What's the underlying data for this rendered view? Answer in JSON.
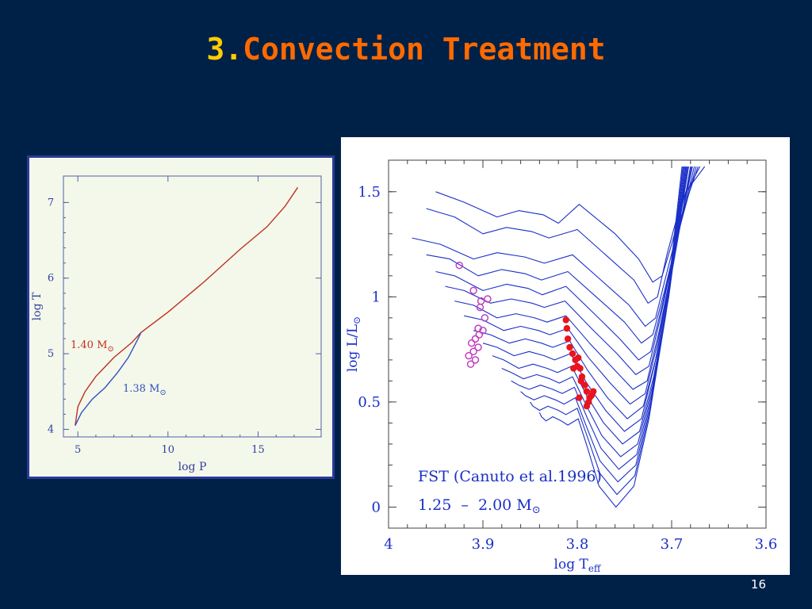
{
  "slide": {
    "title_number": "3.",
    "title_text": "Convection Treatment",
    "page_number": "16"
  },
  "colors": {
    "background": "#002147",
    "title_number": "#ffcc00",
    "title_text": "#ff6a00",
    "series_red": "#c03020",
    "series_blue": "#3050c0",
    "track_blue": "#1a2fc8",
    "obs_red": "#e8141e",
    "obs_magenta": "#c040c0"
  },
  "chart_data": [
    {
      "type": "line",
      "xlabel": "log P",
      "ylabel": "log T",
      "xlim": [
        4.2,
        18.5
      ],
      "ylim": [
        3.9,
        7.35
      ],
      "xticks": [
        5,
        10,
        15
      ],
      "yticks": [
        4,
        5,
        6,
        7
      ],
      "series": [
        {
          "name": "1.40 M⊙",
          "label_main": "1.40 M",
          "label_sub": "⊙",
          "x": [
            4.85,
            5.0,
            5.4,
            6.0,
            7.0,
            8.0,
            8.5,
            10,
            12,
            14,
            15.5,
            16.5,
            17.2
          ],
          "y": [
            4.05,
            4.3,
            4.5,
            4.7,
            4.95,
            5.15,
            5.28,
            5.55,
            5.95,
            6.38,
            6.68,
            6.95,
            7.2
          ]
        },
        {
          "name": "1.38 M⊙",
          "label_main": "1.38 M",
          "label_sub": "⊙",
          "x": [
            4.85,
            5.2,
            5.8,
            6.5,
            7.2,
            7.8,
            8.3,
            8.5
          ],
          "y": [
            4.05,
            4.22,
            4.4,
            4.55,
            4.75,
            4.95,
            5.18,
            5.28
          ]
        }
      ]
    },
    {
      "type": "line",
      "xlabel": "log T",
      "xlabel_sub": "eff",
      "ylabel": "log L/L",
      "ylabel_sub": "⊙",
      "xlim": [
        4.0,
        3.6
      ],
      "ylim": [
        -0.1,
        1.65
      ],
      "xticks": [
        "4",
        "3.9",
        "3.8",
        "3.7",
        "3.6"
      ],
      "yticks": [
        "0",
        "0.5",
        "1",
        "1.5"
      ],
      "annotations": [
        "FST (Canuto et al.1996)",
        "1.25  –  2.00 M"
      ],
      "annotation_sub": "⊙",
      "series": [
        {
          "name": "",
          "x": [
            3.95,
            3.92,
            3.885,
            3.862,
            3.836,
            3.82,
            3.798,
            3.76,
            3.735,
            3.72,
            3.71,
            3.7,
            3.685,
            3.665
          ],
          "y": [
            1.5,
            1.45,
            1.38,
            1.41,
            1.39,
            1.35,
            1.44,
            1.3,
            1.18,
            1.07,
            1.1,
            1.25,
            1.5,
            1.62
          ]
        },
        {
          "name": "",
          "x": [
            3.96,
            3.93,
            3.9,
            3.875,
            3.848,
            3.83,
            3.8,
            3.77,
            3.74,
            3.725,
            3.715,
            3.705,
            3.69,
            3.67
          ],
          "y": [
            1.42,
            1.38,
            1.3,
            1.33,
            1.31,
            1.28,
            1.32,
            1.2,
            1.08,
            0.97,
            1.0,
            1.2,
            1.45,
            1.62
          ]
        },
        {
          "name": "",
          "x": [
            3.975,
            3.945,
            3.91,
            3.885,
            3.856,
            3.835,
            3.805,
            3.775,
            3.745,
            3.728,
            3.717,
            3.706,
            3.69,
            3.672
          ],
          "y": [
            1.28,
            1.25,
            1.18,
            1.21,
            1.19,
            1.16,
            1.2,
            1.08,
            0.96,
            0.86,
            0.9,
            1.1,
            1.38,
            1.62
          ]
        },
        {
          "name": "",
          "x": [
            3.96,
            3.935,
            3.905,
            3.88,
            3.855,
            3.838,
            3.81,
            3.78,
            3.75,
            3.732,
            3.72,
            3.708,
            3.692,
            3.674
          ],
          "y": [
            1.2,
            1.18,
            1.1,
            1.13,
            1.11,
            1.08,
            1.12,
            1.0,
            0.88,
            0.78,
            0.82,
            1.02,
            1.32,
            1.62
          ]
        },
        {
          "name": "",
          "x": [
            3.95,
            3.93,
            3.9,
            3.875,
            3.852,
            3.837,
            3.812,
            3.782,
            3.755,
            3.735,
            3.722,
            3.71,
            3.694,
            3.676
          ],
          "y": [
            1.12,
            1.1,
            1.03,
            1.06,
            1.04,
            1.01,
            1.05,
            0.92,
            0.8,
            0.7,
            0.74,
            0.96,
            1.28,
            1.62
          ]
        },
        {
          "name": "",
          "x": [
            3.94,
            3.92,
            3.892,
            3.87,
            3.848,
            3.835,
            3.813,
            3.785,
            3.758,
            3.738,
            3.724,
            3.712,
            3.696,
            3.678
          ],
          "y": [
            1.05,
            1.03,
            0.97,
            0.99,
            0.97,
            0.95,
            0.98,
            0.85,
            0.73,
            0.63,
            0.67,
            0.9,
            1.24,
            1.62
          ]
        },
        {
          "name": "",
          "x": [
            3.93,
            3.91,
            3.885,
            3.865,
            3.845,
            3.832,
            3.812,
            3.787,
            3.762,
            3.741,
            3.726,
            3.713,
            3.697,
            3.679
          ],
          "y": [
            0.98,
            0.96,
            0.9,
            0.92,
            0.9,
            0.88,
            0.91,
            0.78,
            0.66,
            0.56,
            0.6,
            0.84,
            1.2,
            1.62
          ]
        },
        {
          "name": "",
          "x": [
            3.92,
            3.9,
            3.878,
            3.86,
            3.841,
            3.829,
            3.81,
            3.788,
            3.765,
            3.744,
            3.728,
            3.715,
            3.698,
            3.68
          ],
          "y": [
            0.91,
            0.89,
            0.84,
            0.86,
            0.84,
            0.82,
            0.85,
            0.71,
            0.59,
            0.49,
            0.54,
            0.78,
            1.16,
            1.62
          ]
        },
        {
          "name": "",
          "x": [
            3.91,
            3.892,
            3.872,
            3.855,
            3.838,
            3.826,
            3.808,
            3.789,
            3.768,
            3.747,
            3.73,
            3.716,
            3.7,
            3.682
          ],
          "y": [
            0.84,
            0.82,
            0.78,
            0.8,
            0.78,
            0.76,
            0.79,
            0.65,
            0.52,
            0.42,
            0.48,
            0.72,
            1.12,
            1.62
          ]
        },
        {
          "name": "",
          "x": [
            3.9,
            3.885,
            3.867,
            3.851,
            3.835,
            3.824,
            3.807,
            3.79,
            3.77,
            3.75,
            3.732,
            3.718,
            3.701,
            3.683
          ],
          "y": [
            0.78,
            0.76,
            0.72,
            0.74,
            0.72,
            0.7,
            0.73,
            0.59,
            0.46,
            0.36,
            0.42,
            0.68,
            1.08,
            1.62
          ]
        },
        {
          "name": "",
          "x": [
            3.89,
            3.878,
            3.862,
            3.847,
            3.832,
            3.821,
            3.806,
            3.79,
            3.772,
            3.752,
            3.734,
            3.719,
            3.702,
            3.684
          ],
          "y": [
            0.72,
            0.7,
            0.66,
            0.68,
            0.66,
            0.64,
            0.67,
            0.53,
            0.4,
            0.3,
            0.36,
            0.62,
            1.04,
            1.62
          ]
        },
        {
          "name": "",
          "x": [
            3.88,
            3.87,
            3.857,
            3.843,
            3.829,
            3.819,
            3.805,
            3.79,
            3.774,
            3.754,
            3.736,
            3.72,
            3.703,
            3.685
          ],
          "y": [
            0.66,
            0.64,
            0.61,
            0.63,
            0.61,
            0.59,
            0.62,
            0.48,
            0.34,
            0.24,
            0.3,
            0.58,
            1.0,
            1.62
          ]
        },
        {
          "name": "",
          "x": [
            3.87,
            3.862,
            3.851,
            3.839,
            3.826,
            3.816,
            3.803,
            3.79,
            3.775,
            3.756,
            3.737,
            3.721,
            3.704,
            3.686
          ],
          "y": [
            0.6,
            0.58,
            0.56,
            0.58,
            0.56,
            0.54,
            0.57,
            0.43,
            0.28,
            0.18,
            0.25,
            0.54,
            0.98,
            1.62
          ]
        },
        {
          "name": "",
          "x": [
            3.86,
            3.855,
            3.846,
            3.835,
            3.823,
            3.814,
            3.802,
            3.79,
            3.776,
            3.757,
            3.738,
            3.722,
            3.705,
            3.687
          ],
          "y": [
            0.55,
            0.53,
            0.51,
            0.53,
            0.51,
            0.49,
            0.52,
            0.38,
            0.22,
            0.12,
            0.2,
            0.5,
            0.95,
            1.62
          ]
        },
        {
          "name": "",
          "x": [
            3.85,
            3.847,
            3.84,
            3.831,
            3.82,
            3.812,
            3.8,
            3.789,
            3.776,
            3.758,
            3.739,
            3.723,
            3.706,
            3.688
          ],
          "y": [
            0.5,
            0.48,
            0.46,
            0.48,
            0.46,
            0.44,
            0.47,
            0.33,
            0.16,
            0.06,
            0.15,
            0.46,
            0.92,
            1.62
          ]
        },
        {
          "name": "",
          "x": [
            3.84,
            3.838,
            3.833,
            3.826,
            3.817,
            3.81,
            3.799,
            3.789,
            3.777,
            3.759,
            3.74,
            3.724,
            3.707,
            3.689
          ],
          "y": [
            0.45,
            0.43,
            0.41,
            0.43,
            0.41,
            0.39,
            0.42,
            0.28,
            0.1,
            0.0,
            0.1,
            0.42,
            0.9,
            1.62
          ]
        }
      ],
      "observed_red": [
        {
          "x": 3.785,
          "y": 0.53
        },
        {
          "x": 3.783,
          "y": 0.55
        },
        {
          "x": 3.787,
          "y": 0.52
        },
        {
          "x": 3.79,
          "y": 0.55
        },
        {
          "x": 3.788,
          "y": 0.5
        },
        {
          "x": 3.792,
          "y": 0.58
        },
        {
          "x": 3.795,
          "y": 0.62
        },
        {
          "x": 3.797,
          "y": 0.66
        },
        {
          "x": 3.8,
          "y": 0.67
        },
        {
          "x": 3.802,
          "y": 0.7
        },
        {
          "x": 3.805,
          "y": 0.73
        },
        {
          "x": 3.808,
          "y": 0.76
        },
        {
          "x": 3.81,
          "y": 0.8
        },
        {
          "x": 3.811,
          "y": 0.85
        },
        {
          "x": 3.812,
          "y": 0.89
        },
        {
          "x": 3.798,
          "y": 0.52
        },
        {
          "x": 3.79,
          "y": 0.48
        },
        {
          "x": 3.796,
          "y": 0.6
        },
        {
          "x": 3.799,
          "y": 0.71
        },
        {
          "x": 3.804,
          "y": 0.66
        }
      ],
      "observed_magenta": [
        {
          "x": 3.925,
          "y": 1.15
        },
        {
          "x": 3.91,
          "y": 1.03
        },
        {
          "x": 3.902,
          "y": 0.98
        },
        {
          "x": 3.895,
          "y": 0.99
        },
        {
          "x": 3.903,
          "y": 0.95
        },
        {
          "x": 3.898,
          "y": 0.9
        },
        {
          "x": 3.905,
          "y": 0.85
        },
        {
          "x": 3.9,
          "y": 0.84
        },
        {
          "x": 3.908,
          "y": 0.8
        },
        {
          "x": 3.912,
          "y": 0.78
        },
        {
          "x": 3.905,
          "y": 0.76
        },
        {
          "x": 3.91,
          "y": 0.74
        },
        {
          "x": 3.915,
          "y": 0.72
        },
        {
          "x": 3.908,
          "y": 0.7
        },
        {
          "x": 3.913,
          "y": 0.68
        },
        {
          "x": 3.904,
          "y": 0.82
        }
      ]
    }
  ]
}
